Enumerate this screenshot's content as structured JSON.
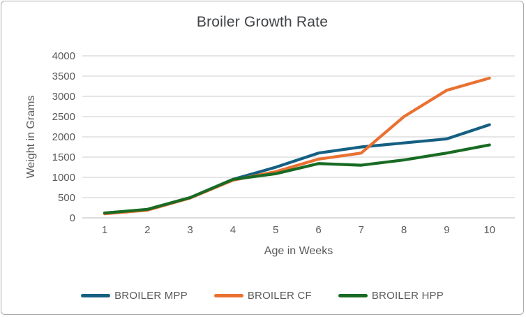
{
  "figure": {
    "title": "Broiler Growth Rate"
  },
  "chart_data": {
    "type": "line",
    "title": "Broiler Growth Rate",
    "xlabel": "Age in Weeks",
    "ylabel": "Weight in Grams",
    "x": [
      1,
      2,
      3,
      4,
      5,
      6,
      7,
      8,
      9,
      10
    ],
    "xlim": [
      1,
      10
    ],
    "ylim": [
      0,
      4000
    ],
    "yticks": [
      0,
      500,
      1000,
      1500,
      2000,
      2500,
      3000,
      3500,
      4000
    ],
    "grid": true,
    "legend_position": "bottom",
    "series": [
      {
        "name": "BROILER MPP",
        "color": "#156082",
        "values": [
          120,
          200,
          500,
          950,
          1250,
          1600,
          1750,
          1850,
          1950,
          2300
        ]
      },
      {
        "name": "BROILER CF",
        "color": "#E97132",
        "values": [
          100,
          190,
          490,
          930,
          1140,
          1450,
          1600,
          2500,
          3150,
          3450
        ]
      },
      {
        "name": "BROILER HPP",
        "color": "#196B24",
        "values": [
          120,
          210,
          500,
          950,
          1090,
          1340,
          1300,
          1430,
          1600,
          1800
        ]
      }
    ],
    "style": {
      "gridline_color": "#d8d8d8",
      "axis_line_color": "#c6c6c6",
      "tick_label_color": "#595959",
      "axis_title_color": "#595959",
      "title_color": "#3f4145",
      "line_width": 4.2
    }
  }
}
